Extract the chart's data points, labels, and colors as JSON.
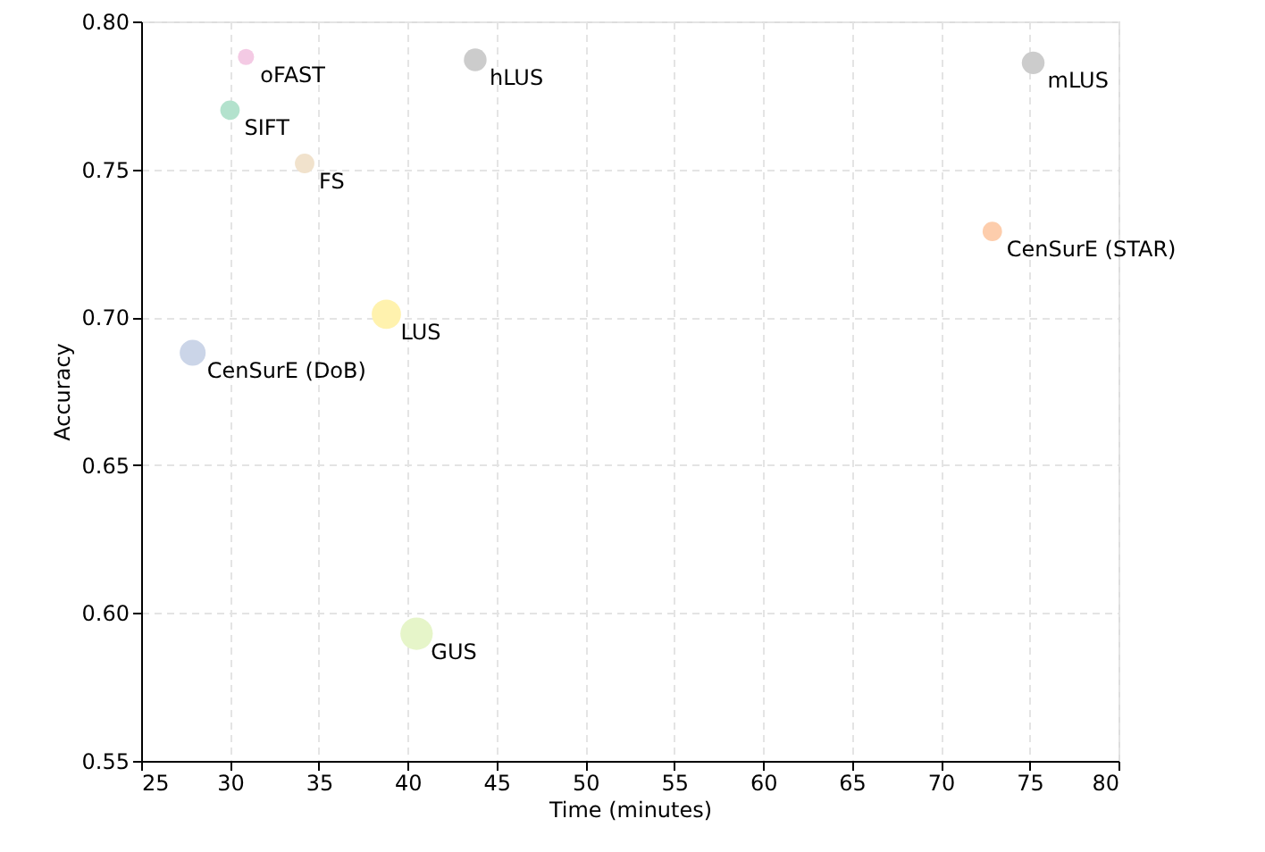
{
  "chart_data": {
    "type": "bubble",
    "xlabel": "Time (minutes)",
    "ylabel": "Accuracy",
    "xlim": [
      25,
      80
    ],
    "xticks": [
      25,
      30,
      35,
      40,
      45,
      50,
      55,
      60,
      65,
      70,
      75,
      80
    ],
    "ylim": [
      0.55,
      0.8
    ],
    "yticks": [
      {
        "value": 0.55,
        "label": "0.55"
      },
      {
        "value": 0.6,
        "label": "0.60"
      },
      {
        "value": 0.65,
        "label": "0.65"
      },
      {
        "value": 0.7,
        "label": "0.70"
      },
      {
        "value": 0.75,
        "label": "0.75"
      },
      {
        "value": 0.8,
        "label": "0.80"
      }
    ],
    "grid": true,
    "legend": false,
    "series": [
      {
        "name": "oFAST",
        "color": "#f4cae4",
        "x": [
          30.9
        ],
        "values": [
          0.788
        ],
        "sizes": [
          0.25
        ]
      },
      {
        "name": "SIFT",
        "color": "#b3e2cd",
        "x": [
          30.0
        ],
        "values": [
          0.77
        ],
        "sizes": [
          0.36
        ]
      },
      {
        "name": "FS",
        "color": "#f1e2cc",
        "x": [
          34.2
        ],
        "values": [
          0.752
        ],
        "sizes": [
          0.36
        ]
      },
      {
        "name": "hLUS",
        "color": "#cccccc",
        "x": [
          43.8
        ],
        "values": [
          0.787
        ],
        "sizes": [
          0.49
        ]
      },
      {
        "name": "mLUS",
        "color": "#cccccc",
        "x": [
          75.2
        ],
        "values": [
          0.786
        ],
        "sizes": [
          0.49
        ]
      },
      {
        "name": "CenSurE (STAR)",
        "color": "#fdcdac",
        "x": [
          72.9
        ],
        "values": [
          0.729
        ],
        "sizes": [
          0.36
        ]
      },
      {
        "name": "LUS",
        "color": "#fff2ae",
        "x": [
          38.8
        ],
        "values": [
          0.701
        ],
        "sizes": [
          0.81
        ]
      },
      {
        "name": "CenSurE (DoB)",
        "color": "#cbd5e8",
        "x": [
          27.9
        ],
        "values": [
          0.688
        ],
        "sizes": [
          0.64
        ]
      },
      {
        "name": "GUS",
        "color": "#e6f5c9",
        "x": [
          40.5
        ],
        "values": [
          0.593
        ],
        "sizes": [
          1
        ]
      }
    ]
  }
}
